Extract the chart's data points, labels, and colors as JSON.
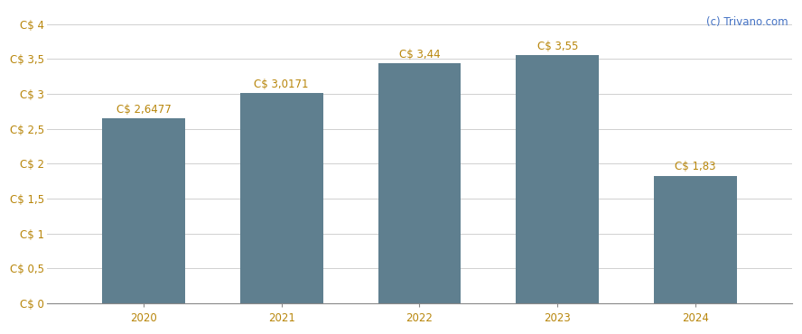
{
  "categories": [
    "2020",
    "2021",
    "2022",
    "2023",
    "2024"
  ],
  "values": [
    2.6477,
    3.0171,
    3.44,
    3.55,
    1.83
  ],
  "labels": [
    "C$ 2,6477",
    "C$ 3,0171",
    "C$ 3,44",
    "C$ 3,55",
    "C$ 1,83"
  ],
  "bar_color": "#5f7f8f",
  "background_color": "#ffffff",
  "ylim": [
    0,
    4.2
  ],
  "yticks": [
    0,
    0.5,
    1.0,
    1.5,
    2.0,
    2.5,
    3.0,
    3.5,
    4.0
  ],
  "ytick_labels": [
    "C$ 0",
    "C$ 0,5",
    "C$ 1",
    "C$ 1,5",
    "C$ 2",
    "C$ 2,5",
    "C$ 3",
    "C$ 3,5",
    "C$ 4"
  ],
  "watermark": "(c) Trivano.com",
  "watermark_color": "#4472c4",
  "label_color": "#b8860b",
  "ytick_color": "#b8860b",
  "xtick_color": "#b8860b",
  "label_fontsize": 8.5,
  "tick_fontsize": 8.5,
  "watermark_fontsize": 8.5,
  "bar_width": 0.6,
  "grid_color": "#d0d0d0"
}
